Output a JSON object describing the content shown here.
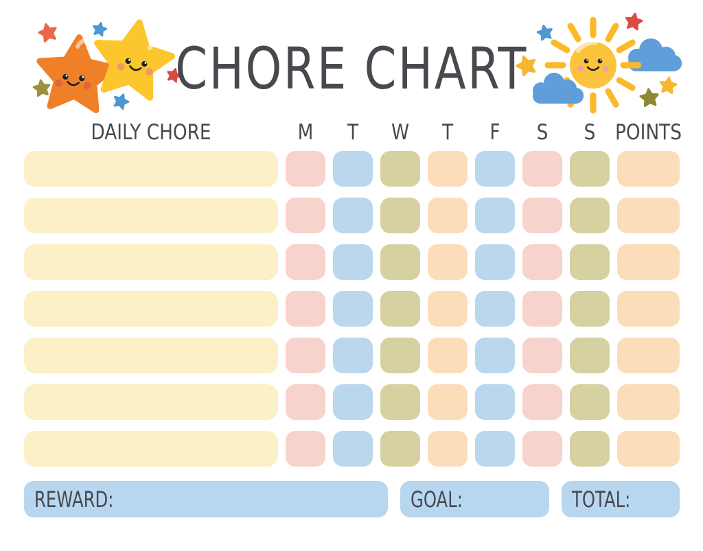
{
  "title": "CHORE CHART",
  "header": {
    "chore_column_label": "DAILY CHORE",
    "day_labels": [
      "M",
      "T",
      "W",
      "T",
      "F",
      "S",
      "S"
    ],
    "points_label": "POINTS"
  },
  "grid": {
    "num_rows": 7,
    "chore_cell_color": "chore_cell",
    "day_cell_colors": [
      "pink_cell",
      "blue_cell",
      "olive_cell",
      "peach_cell",
      "blue_cell",
      "pink_cell",
      "olive_cell"
    ],
    "points_cell_color": "peach_cell"
  },
  "footer": {
    "reward_label": "REWARD:",
    "goal_label": "GOAL:",
    "total_label": "TOTAL:",
    "cell_color": "footer_cell"
  },
  "colors": {
    "text": "#47494E",
    "chore_cell": "#FBF0C6",
    "pink_cell": "#F8D2CC",
    "blue_cell": "#BBD7EE",
    "olive_cell": "#D5D1A1",
    "peach_cell": "#FBDDBA",
    "footer_cell": "#B7D6F0",
    "orange_star": "#EF8028",
    "yellow_star": "#FCC62E",
    "small_red": "#E8684A",
    "small_blue": "#4E97D5",
    "small_olive": "#9C9140",
    "small_olive2": "#8F8736",
    "small_dark_red": "#DC4B41",
    "small_yellow": "#F5B731",
    "sun": "#FCC33C",
    "ray": "#FBB829",
    "cloud": "#5F9ED8",
    "cheek_orange": "#E2663B",
    "cheek_yellow": "#F09A5E",
    "cheek_sun": "#F2A19B"
  },
  "decorations": {
    "left_icon": "smiling-stars-icon",
    "right_icon": "smiling-sun-clouds-icon"
  }
}
